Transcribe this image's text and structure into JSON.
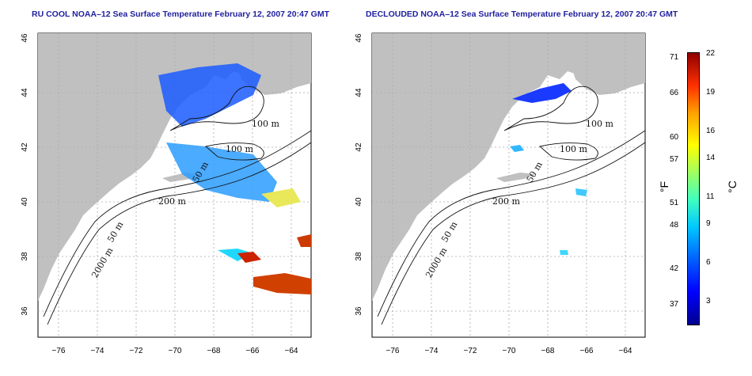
{
  "titles": {
    "left": "RU COOL NOAA–12 Sea Surface Temperature February 12, 2007 20:47 GMT",
    "right": "DECLOUDED NOAA–12 Sea Surface Temperature February 12, 2007 20:47 GMT"
  },
  "axes": {
    "x_ticks": [
      "−76",
      "−74",
      "−72",
      "−70",
      "−68",
      "−66",
      "−64"
    ],
    "y_ticks": [
      "46",
      "44",
      "42",
      "40",
      "38",
      "36"
    ]
  },
  "contours": {
    "left": [
      "100 m",
      "100 m",
      "50 m",
      "200 m",
      "50 m",
      "2000 m"
    ],
    "right": [
      "100 m",
      "100 m",
      "50 m",
      "200 m",
      "50 m",
      "2000 m"
    ]
  },
  "colorbar": {
    "fahrenheit_label": "°F",
    "celsius_label": "°C",
    "fahrenheit_ticks": [
      "71",
      "66",
      "60",
      "57",
      "51",
      "48",
      "42",
      "37"
    ],
    "celsius_ticks": [
      "22",
      "19",
      "16",
      "14",
      "11",
      "9",
      "6",
      "3"
    ]
  },
  "colors": {
    "land": "#c0c0c0",
    "title": "#1f1fa0"
  }
}
